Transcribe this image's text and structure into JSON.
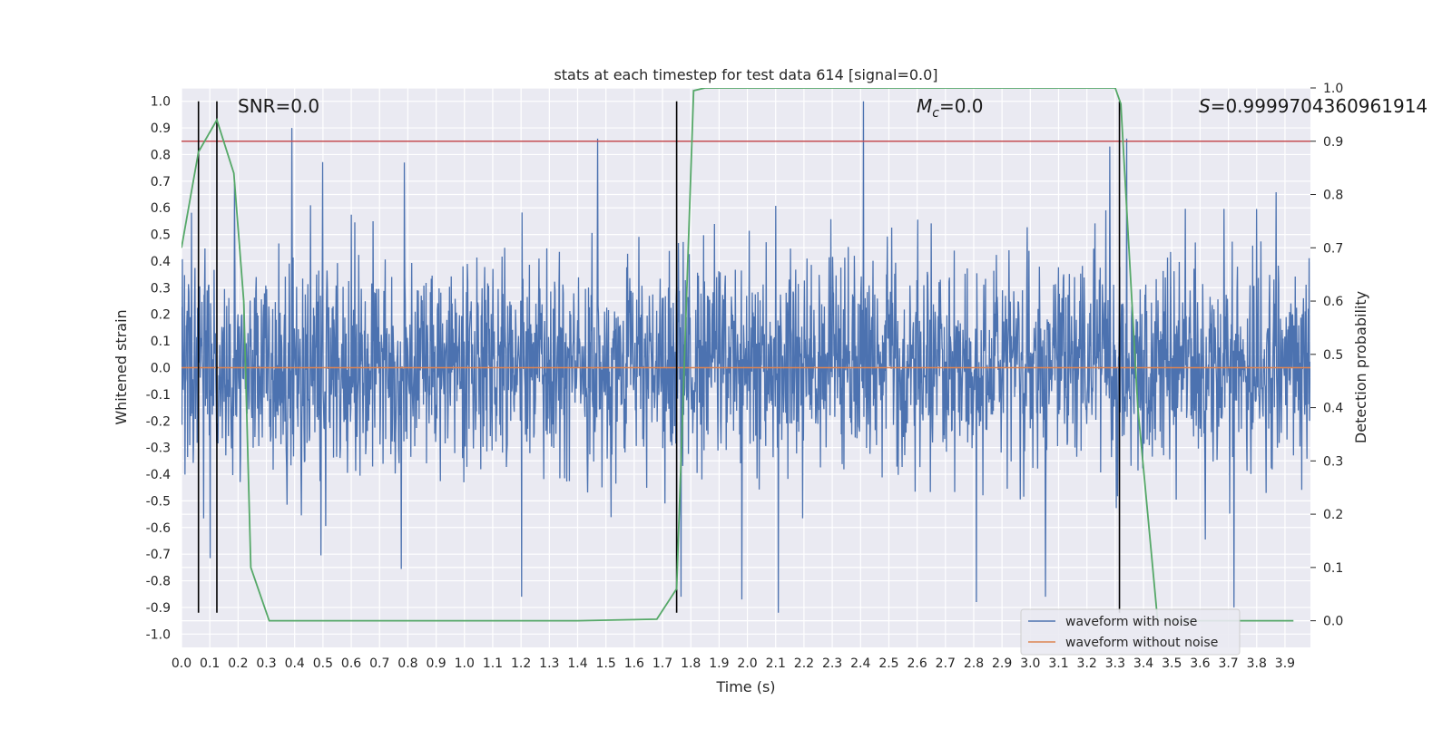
{
  "chart_data": {
    "type": "line",
    "title": "stats at each timestep for test data 614 [signal=0.0]",
    "xlabel": "Time (s)",
    "ylabel": "Whitened strain",
    "ylabel_right": "Detection probability",
    "xlim": [
      0.0,
      3.99
    ],
    "ylim": [
      -1.05,
      1.05
    ],
    "ylim_right": [
      -0.05,
      1.0
    ],
    "x_ticks": [
      "0.0",
      "0.1",
      "0.2",
      "0.3",
      "0.4",
      "0.5",
      "0.6",
      "0.7",
      "0.8",
      "0.9",
      "1.0",
      "1.1",
      "1.2",
      "1.3",
      "1.4",
      "1.5",
      "1.6",
      "1.7",
      "1.8",
      "1.9",
      "2.0",
      "2.1",
      "2.2",
      "2.3",
      "2.4",
      "2.5",
      "2.6",
      "2.7",
      "2.8",
      "2.9",
      "3.0",
      "3.1",
      "3.2",
      "3.3",
      "3.4",
      "3.5",
      "3.6",
      "3.7",
      "3.8",
      "3.9"
    ],
    "y_ticks": [
      "-1.0",
      "-0.9",
      "-0.8",
      "-0.7",
      "-0.6",
      "-0.5",
      "-0.4",
      "-0.3",
      "-0.2",
      "-0.1",
      "0.0",
      "0.1",
      "0.2",
      "0.3",
      "0.4",
      "0.5",
      "0.6",
      "0.7",
      "0.8",
      "0.9",
      "1.0"
    ],
    "y_ticks_right": [
      "0.0",
      "0.1",
      "0.2",
      "0.3",
      "0.4",
      "0.5",
      "0.6",
      "0.7",
      "0.8",
      "0.9",
      "1.0"
    ],
    "grid": true,
    "legend_position": "lower-right",
    "annotations": {
      "snr": "SNR=0.0",
      "mc": "=0.0",
      "s": "=0.9999704360961914"
    },
    "series": [
      {
        "name": "waveform with noise",
        "color": "#4c72b0",
        "axis": "left",
        "description": "dense noise, amplitude mostly within ±0.5 with spikes",
        "peaks": [
          {
            "x": 0.39,
            "y": 0.9
          },
          {
            "x": 1.47,
            "y": 0.86
          },
          {
            "x": 2.41,
            "y": 1.0
          },
          {
            "x": 3.28,
            "y": 0.83
          },
          {
            "x": 3.34,
            "y": 0.86
          },
          {
            "x": 2.11,
            "y": -0.92
          },
          {
            "x": 2.81,
            "y": -0.88
          },
          {
            "x": 3.72,
            "y": -0.9
          },
          {
            "x": 1.98,
            "y": -0.87
          }
        ]
      },
      {
        "name": "waveform without noise",
        "color": "#dd8452",
        "axis": "left",
        "x": [
          0.0,
          3.99
        ],
        "y": [
          0.0,
          0.0
        ]
      },
      {
        "name": "",
        "color": "#55a868",
        "axis": "right",
        "x": [
          0.0,
          0.06,
          0.125,
          0.185,
          0.22,
          0.245,
          0.31,
          1.4,
          1.68,
          1.75,
          1.81,
          1.85,
          3.3,
          3.32,
          3.38,
          3.45,
          3.5,
          3.93
        ],
        "y": [
          0.7,
          0.88,
          0.94,
          0.84,
          0.6,
          0.1,
          0.0,
          0.0,
          0.003,
          0.06,
          0.995,
          1.0,
          1.0,
          0.97,
          0.4,
          0.0,
          0.0,
          0.0
        ]
      }
    ],
    "hlines": [
      {
        "axis": "right",
        "y": 0.9,
        "color": "#c44e52"
      }
    ],
    "vlines": [
      {
        "x": 0.06,
        "color": "#000000"
      },
      {
        "x": 0.125,
        "color": "#000000"
      },
      {
        "x": 1.75,
        "color": "#000000"
      },
      {
        "x": 3.315,
        "color": "#000000"
      }
    ]
  }
}
